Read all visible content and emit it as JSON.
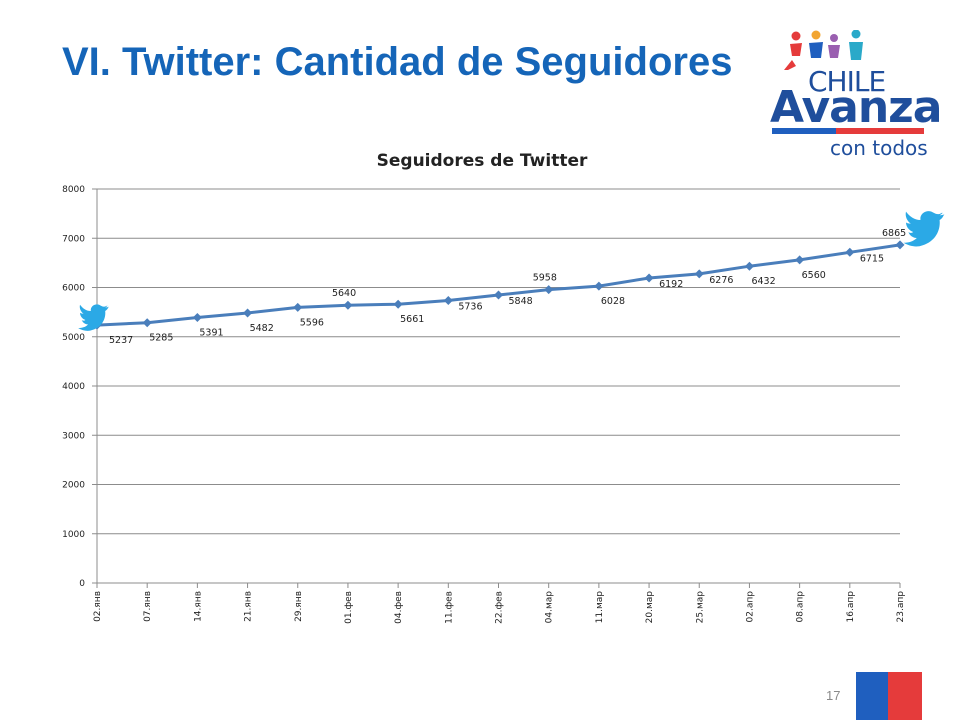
{
  "slide": {
    "title": "VI. Twitter: Cantidad de Seguidores",
    "page_number": "17"
  },
  "logo": {
    "line1": "CHILE",
    "line2": "Avanza",
    "line3": "con todos"
  },
  "colors": {
    "title": "#1565b8",
    "series": "#4a7ebb",
    "twitter": "#2ba9e6",
    "logo_blue": "#1f5fbf",
    "logo_red": "#e53b3b"
  },
  "icons": [
    "twitter-bird-icon",
    "twitter-bird-icon",
    "chile-avanza-logo"
  ],
  "chart_data": {
    "type": "line",
    "title": "Seguidores de Twitter",
    "xlabel": "",
    "ylabel": "",
    "ylim": [
      0,
      8000
    ],
    "yticks": [
      0,
      1000,
      2000,
      3000,
      4000,
      5000,
      6000,
      7000,
      8000
    ],
    "grid": "horizontal",
    "legend": "none",
    "categories": [
      "02.янв",
      "07.янв",
      "14.янв",
      "21.янв",
      "29.янв",
      "01.фев",
      "04.фев",
      "11.фев",
      "22.фев",
      "04.мар",
      "11.мар",
      "20.мар",
      "25.мар",
      "02.апр",
      "08.апр",
      "16.апр",
      "23.апр"
    ],
    "values": [
      5237,
      5285,
      5391,
      5482,
      5596,
      5640,
      5661,
      5736,
      5848,
      5958,
      6028,
      6192,
      6276,
      6432,
      6560,
      6715,
      6865
    ],
    "data_labels": [
      "5237",
      "5285",
      "5391",
      "5482",
      "5596",
      "5640",
      "5661",
      "5736",
      "5848",
      "5958",
      "6028",
      "6192",
      "6276",
      "6432",
      "6560",
      "6715",
      "6865"
    ]
  }
}
